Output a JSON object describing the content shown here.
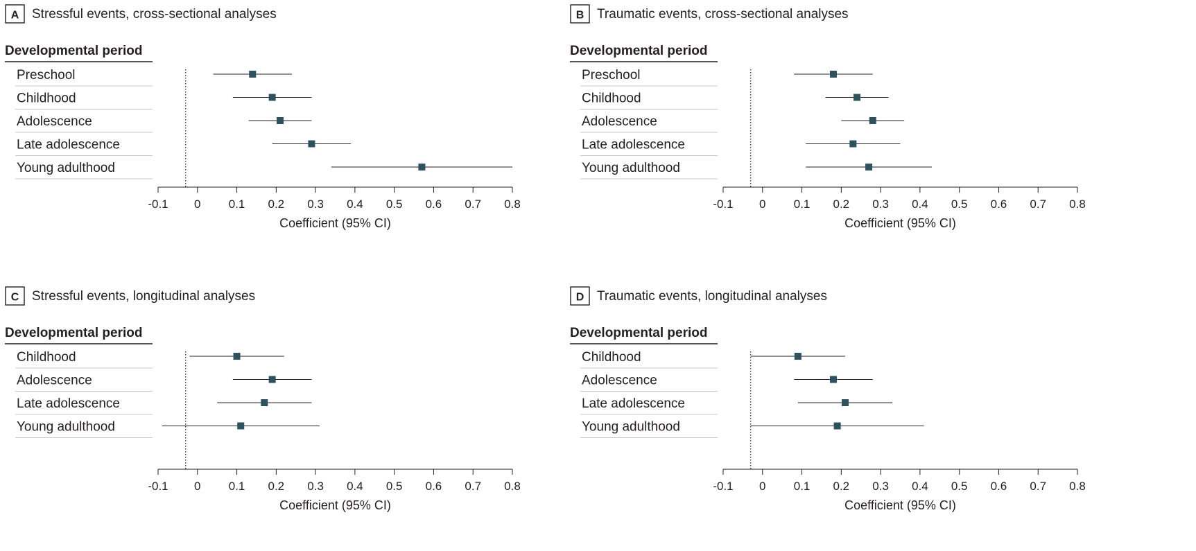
{
  "chart_data": [
    {
      "type": "forest",
      "panel": "A",
      "title": "Stressful events, cross-sectional analyses",
      "header": "Developmental period",
      "xlabel": "Coefficient (95% CI)",
      "xlim": [
        -0.1,
        0.8
      ],
      "xticks": [
        "-0.1",
        "0",
        "0.1",
        "0.2",
        "0.3",
        "0.4",
        "0.5",
        "0.6",
        "0.7",
        "0.8"
      ],
      "reference_line": -0.03,
      "rows": [
        {
          "label": "Preschool",
          "estimate": 0.14,
          "lower": 0.04,
          "upper": 0.24
        },
        {
          "label": "Childhood",
          "estimate": 0.19,
          "lower": 0.09,
          "upper": 0.29
        },
        {
          "label": "Adolescence",
          "estimate": 0.21,
          "lower": 0.13,
          "upper": 0.29
        },
        {
          "label": "Late adolescence",
          "estimate": 0.29,
          "lower": 0.19,
          "upper": 0.39
        },
        {
          "label": "Young adulthood",
          "estimate": 0.57,
          "lower": 0.34,
          "upper": 0.8
        }
      ]
    },
    {
      "type": "forest",
      "panel": "B",
      "title": "Traumatic events, cross-sectional analyses",
      "header": "Developmental period",
      "xlabel": "Coefficient (95% CI)",
      "xlim": [
        -0.1,
        0.8
      ],
      "xticks": [
        "-0.1",
        "0",
        "0.1",
        "0.2",
        "0.3",
        "0.4",
        "0.5",
        "0.6",
        "0.7",
        "0.8"
      ],
      "reference_line": -0.03,
      "rows": [
        {
          "label": "Preschool",
          "estimate": 0.18,
          "lower": 0.08,
          "upper": 0.28
        },
        {
          "label": "Childhood",
          "estimate": 0.24,
          "lower": 0.16,
          "upper": 0.32
        },
        {
          "label": "Adolescence",
          "estimate": 0.28,
          "lower": 0.2,
          "upper": 0.36
        },
        {
          "label": "Late adolescence",
          "estimate": 0.23,
          "lower": 0.11,
          "upper": 0.35
        },
        {
          "label": "Young adulthood",
          "estimate": 0.27,
          "lower": 0.11,
          "upper": 0.43
        }
      ]
    },
    {
      "type": "forest",
      "panel": "C",
      "title": "Stressful events, longitudinal analyses",
      "header": "Developmental period",
      "xlabel": "Coefficient (95% CI)",
      "xlim": [
        -0.1,
        0.8
      ],
      "xticks": [
        "-0.1",
        "0",
        "0.1",
        "0.2",
        "0.3",
        "0.4",
        "0.5",
        "0.6",
        "0.7",
        "0.8"
      ],
      "reference_line": -0.03,
      "rows": [
        {
          "label": "Childhood",
          "estimate": 0.1,
          "lower": -0.02,
          "upper": 0.22
        },
        {
          "label": "Adolescence",
          "estimate": 0.19,
          "lower": 0.09,
          "upper": 0.29
        },
        {
          "label": "Late adolescence",
          "estimate": 0.17,
          "lower": 0.05,
          "upper": 0.29
        },
        {
          "label": "Young adulthood",
          "estimate": 0.11,
          "lower": -0.09,
          "upper": 0.31
        }
      ]
    },
    {
      "type": "forest",
      "panel": "D",
      "title": "Traumatic events, longitudinal analyses",
      "header": "Developmental period",
      "xlabel": "Coefficient (95% CI)",
      "xlim": [
        -0.1,
        0.8
      ],
      "xticks": [
        "-0.1",
        "0",
        "0.1",
        "0.2",
        "0.3",
        "0.4",
        "0.5",
        "0.6",
        "0.7",
        "0.8"
      ],
      "reference_line": -0.03,
      "rows": [
        {
          "label": "Childhood",
          "estimate": 0.09,
          "lower": -0.03,
          "upper": 0.21
        },
        {
          "label": "Adolescence",
          "estimate": 0.18,
          "lower": 0.08,
          "upper": 0.28
        },
        {
          "label": "Late adolescence",
          "estimate": 0.21,
          "lower": 0.09,
          "upper": 0.33
        },
        {
          "label": "Young adulthood",
          "estimate": 0.19,
          "lower": -0.03,
          "upper": 0.41
        }
      ]
    }
  ],
  "colors": {
    "marker": "#2e5160",
    "ci_line": "#231f20",
    "divider": "#c8c8c8",
    "text": "#231f20"
  }
}
